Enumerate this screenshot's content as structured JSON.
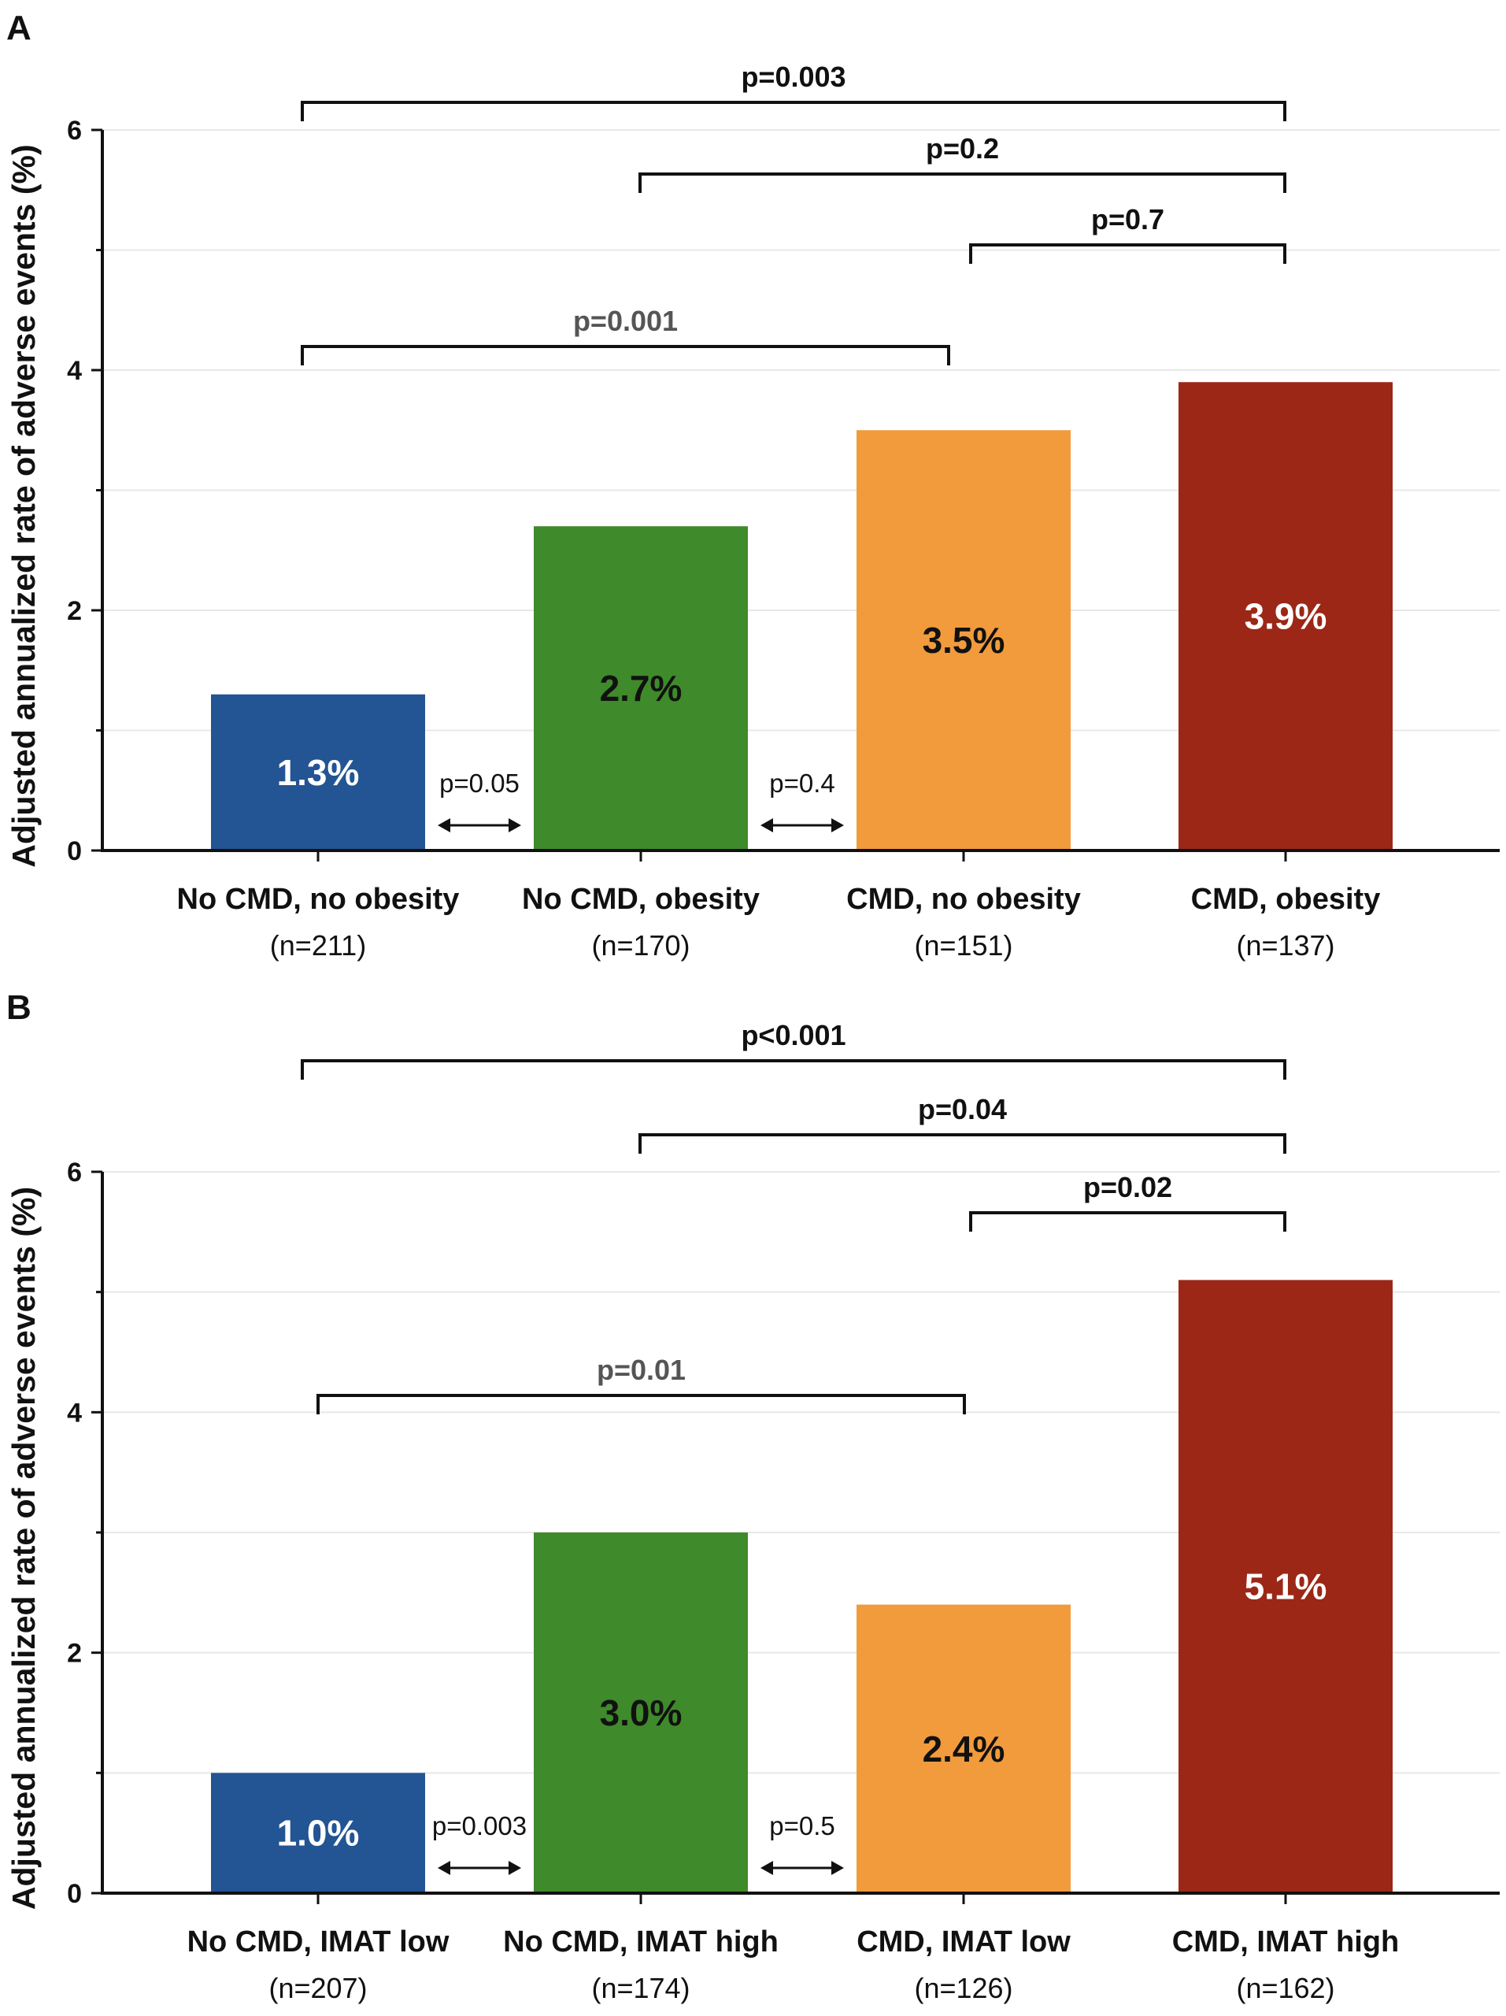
{
  "chart_data": [
    {
      "panel": "A",
      "type": "bar",
      "ylabel": "Adjusted annualized rate of adverse events (%)",
      "ylim": [
        0,
        6
      ],
      "yticks": [
        0,
        2,
        4,
        6
      ],
      "categories": [
        "No CMD, no obesity",
        "No CMD, obesity",
        "CMD, no obesity",
        "CMD, obesity"
      ],
      "counts": [
        "(n=211)",
        "(n=170)",
        "(n=151)",
        "(n=137)"
      ],
      "values": [
        1.3,
        2.7,
        3.5,
        3.9
      ],
      "value_labels": [
        "1.3%",
        "2.7%",
        "3.5%",
        "3.9%"
      ],
      "colors": [
        "#235493",
        "#3f8a2a",
        "#f19b3c",
        "#9c2716"
      ],
      "label_colors": [
        "#ffffff",
        "#111111",
        "#111111",
        "#ffffff"
      ],
      "brackets": [
        {
          "from": 0,
          "to": 3,
          "label": "p=0.003",
          "level": 4
        },
        {
          "from": 1,
          "to": 3,
          "label": "p=0.2",
          "level": 3
        },
        {
          "from": 2,
          "to": 3,
          "label": "p=0.7",
          "level": 2
        },
        {
          "from": 0,
          "to": 2,
          "label": "p=0.001",
          "level": 1,
          "muted": true
        }
      ],
      "adjacent": [
        {
          "between": [
            0,
            1
          ],
          "label": "p=0.05"
        },
        {
          "between": [
            1,
            2
          ],
          "label": "p=0.4"
        }
      ]
    },
    {
      "panel": "B",
      "type": "bar",
      "ylabel": "Adjusted annualized rate of adverse events (%)",
      "ylim": [
        0,
        6
      ],
      "yticks": [
        0,
        2,
        4,
        6
      ],
      "categories": [
        "No CMD, IMAT low",
        "No CMD, IMAT high",
        "CMD, IMAT low",
        "CMD, IMAT high"
      ],
      "counts": [
        "(n=207)",
        "(n=174)",
        "(n=126)",
        "(n=162)"
      ],
      "values": [
        1.0,
        3.0,
        2.4,
        5.1
      ],
      "value_labels": [
        "1.0%",
        "3.0%",
        "2.4%",
        "5.1%"
      ],
      "colors": [
        "#235493",
        "#3f8a2a",
        "#f19b3c",
        "#9c2716"
      ],
      "label_colors": [
        "#ffffff",
        "#111111",
        "#111111",
        "#ffffff"
      ],
      "brackets": [
        {
          "from": 0,
          "to": 3,
          "label": "p<0.001",
          "level": 4
        },
        {
          "from": 1,
          "to": 3,
          "label": "p=0.04",
          "level": 3
        },
        {
          "from": 2,
          "to": 3,
          "label": "p=0.02",
          "level": 2
        },
        {
          "from": 0,
          "to": 2,
          "label": "p=0.01",
          "level": 1,
          "muted": true
        }
      ],
      "adjacent": [
        {
          "between": [
            0,
            1
          ],
          "label": "p=0.003"
        },
        {
          "between": [
            1,
            2
          ],
          "label": "p=0.5"
        }
      ]
    }
  ]
}
